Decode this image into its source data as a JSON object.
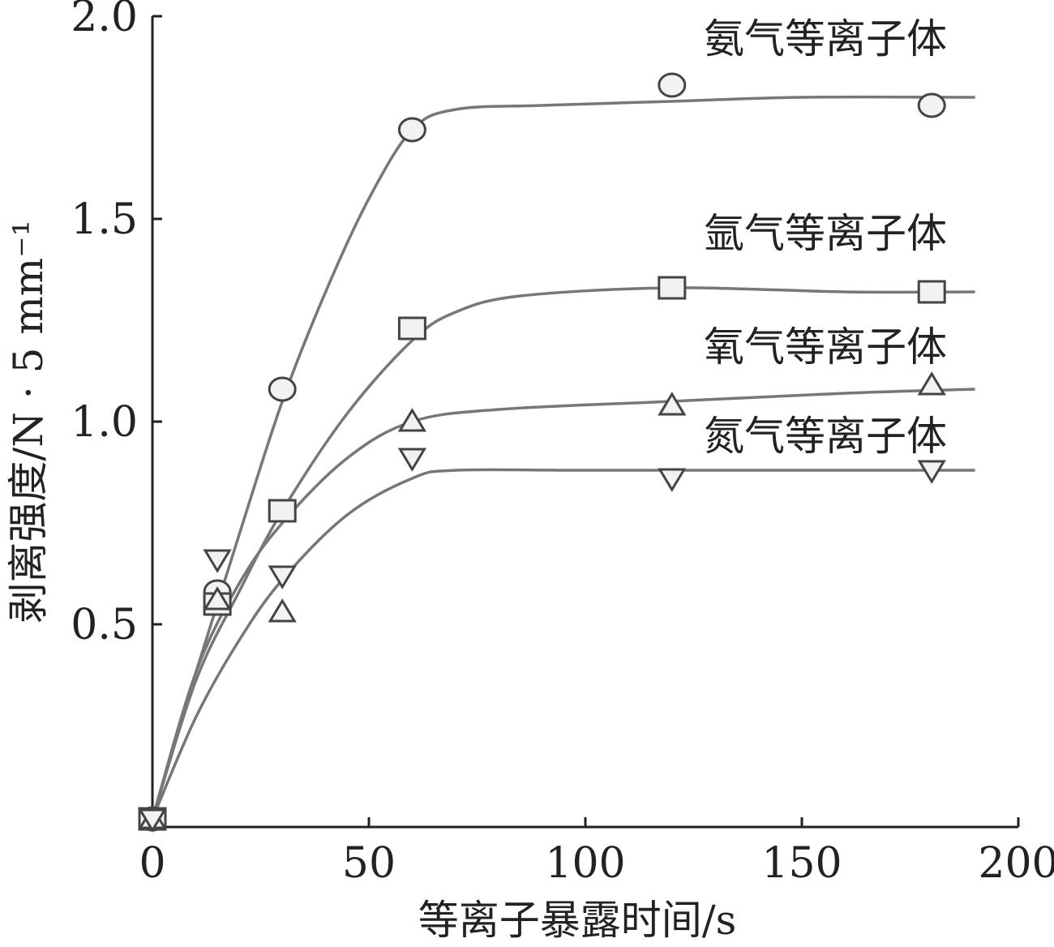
{
  "chart_data": {
    "type": "line",
    "xlabel": "等离子暴露时间/s",
    "ylabel": "剥离强度/N · 5 mm⁻¹",
    "xlim": [
      0,
      200
    ],
    "ylim": [
      0,
      2.0
    ],
    "xticks": [
      0,
      50,
      100,
      150,
      200
    ],
    "xtick_labels": [
      "0",
      "50",
      "100",
      "150",
      "200"
    ],
    "yticks": [
      0.5,
      1.0,
      1.5,
      2.0
    ],
    "ytick_labels": [
      "0.5",
      "1.0",
      "1.5",
      "2.0"
    ],
    "grid": false,
    "legend": "inline labels at right",
    "series": [
      {
        "name": "氨气等离子体",
        "marker": "circle",
        "points": [
          [
            0,
            0.02
          ],
          [
            15,
            0.58
          ],
          [
            30,
            1.08
          ],
          [
            60,
            1.72
          ],
          [
            120,
            1.83
          ],
          [
            180,
            1.78
          ]
        ],
        "fit": [
          [
            0,
            0.02
          ],
          [
            10,
            0.38
          ],
          [
            20,
            0.72
          ],
          [
            30,
            1.05
          ],
          [
            40,
            1.32
          ],
          [
            50,
            1.55
          ],
          [
            60,
            1.72
          ],
          [
            70,
            1.77
          ],
          [
            90,
            1.78
          ],
          [
            120,
            1.79
          ],
          [
            150,
            1.8
          ],
          [
            190,
            1.8
          ]
        ]
      },
      {
        "name": "氩气等离子体",
        "marker": "square",
        "points": [
          [
            0,
            0.02
          ],
          [
            15,
            0.55
          ],
          [
            30,
            0.78
          ],
          [
            60,
            1.23
          ],
          [
            120,
            1.33
          ],
          [
            180,
            1.32
          ]
        ],
        "fit": [
          [
            0,
            0.02
          ],
          [
            10,
            0.36
          ],
          [
            20,
            0.58
          ],
          [
            30,
            0.78
          ],
          [
            45,
            1.02
          ],
          [
            60,
            1.2
          ],
          [
            70,
            1.27
          ],
          [
            85,
            1.31
          ],
          [
            120,
            1.33
          ],
          [
            160,
            1.32
          ],
          [
            190,
            1.32
          ]
        ]
      },
      {
        "name": "氧气等离子体",
        "marker": "triangle-up",
        "points": [
          [
            0,
            0.02
          ],
          [
            15,
            0.56
          ],
          [
            30,
            0.53
          ],
          [
            60,
            1.0
          ],
          [
            120,
            1.04
          ],
          [
            180,
            1.09
          ]
        ],
        "fit": [
          [
            0,
            0.02
          ],
          [
            10,
            0.38
          ],
          [
            20,
            0.6
          ],
          [
            30,
            0.75
          ],
          [
            45,
            0.91
          ],
          [
            60,
            1.0
          ],
          [
            80,
            1.03
          ],
          [
            120,
            1.05
          ],
          [
            160,
            1.07
          ],
          [
            190,
            1.08
          ]
        ]
      },
      {
        "name": "氮气等离子体",
        "marker": "triangle-down",
        "points": [
          [
            0,
            0.02
          ],
          [
            15,
            0.66
          ],
          [
            30,
            0.62
          ],
          [
            60,
            0.91
          ],
          [
            120,
            0.86
          ],
          [
            180,
            0.88
          ]
        ],
        "fit": [
          [
            0,
            0.02
          ],
          [
            10,
            0.27
          ],
          [
            20,
            0.46
          ],
          [
            30,
            0.61
          ],
          [
            45,
            0.77
          ],
          [
            60,
            0.86
          ],
          [
            70,
            0.88
          ],
          [
            100,
            0.88
          ],
          [
            150,
            0.88
          ],
          [
            190,
            0.88
          ]
        ]
      }
    ],
    "annotations": [
      {
        "text": "氨气等离子体",
        "series": 0
      },
      {
        "text": "氩气等离子体",
        "series": 1
      },
      {
        "text": "氧气等离子体",
        "series": 2
      },
      {
        "text": "氮气等离子体",
        "series": 3
      }
    ]
  }
}
